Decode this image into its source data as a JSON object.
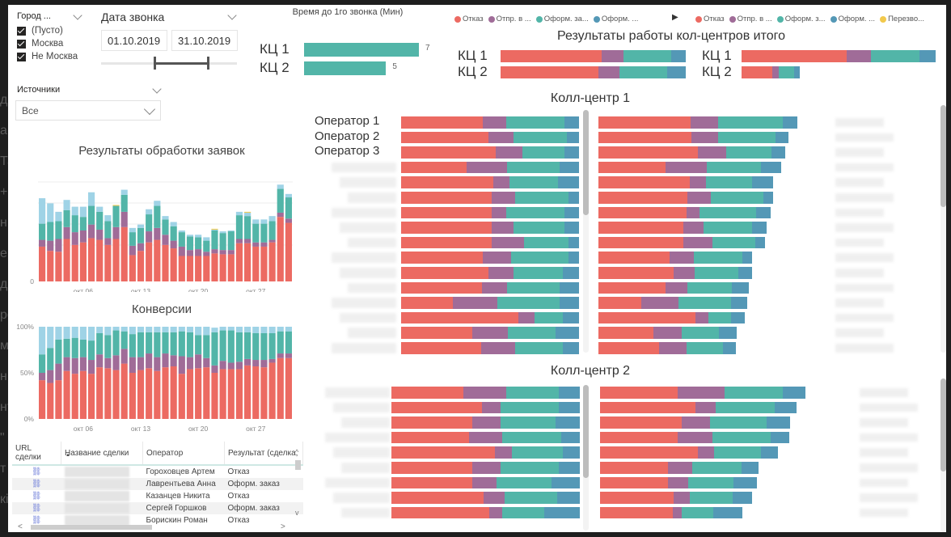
{
  "colors": {
    "otkaz": "#EC6A62",
    "otpr": "#A06C98",
    "oform_z": "#52B5A8",
    "oform": "#5498B6",
    "perezvon": "#F2C94C",
    "light": "#9FD3E6"
  },
  "filters": {
    "city": {
      "label": "Город ...",
      "options": [
        {
          "label": "(Пусто)",
          "checked": true
        },
        {
          "label": "Москва",
          "checked": true
        },
        {
          "label": "Не Москва",
          "checked": true
        }
      ]
    },
    "date": {
      "label": "Дата звонка",
      "from": "01.10.2019",
      "to": "31.10.2019",
      "range_start_fraction": 0.0,
      "range_end_fraction": 1.0
    },
    "sources": {
      "label": "Источники",
      "selected": "Все"
    }
  },
  "time_chart": {
    "title": "Время до 1го звонка (Мин)",
    "rows": [
      {
        "label": "КЦ 1",
        "value": 7
      },
      {
        "label": "КЦ 2",
        "value": 5
      }
    ]
  },
  "legend_a": {
    "items": [
      "Отказ",
      "Отпр. в ...",
      "Оформ. за...",
      "Оформ. ..."
    ],
    "next_arrow": "▶"
  },
  "legend_b": {
    "items": [
      "Отказ",
      "Отпр. в ...",
      "Оформ. з...",
      "Оформ. ...",
      "Перезво..."
    ]
  },
  "totals": {
    "title": "Результаты работы кол-центров итого",
    "left": [
      {
        "label": "КЦ 1",
        "values": [
          55,
          12,
          26,
          8
        ]
      },
      {
        "label": "КЦ 2",
        "values": [
          53,
          11,
          26,
          10
        ]
      }
    ],
    "right": [
      {
        "label": "КЦ 1",
        "values": [
          130,
          30,
          60,
          20
        ]
      },
      {
        "label": "КЦ 2",
        "values": [
          38,
          8,
          19,
          7
        ]
      }
    ]
  },
  "chart_data": [
    {
      "type": "bar",
      "title": "Результаты обработки заявок",
      "stacked": true,
      "categories": [
        "окт 01",
        "окт 02",
        "окт 03",
        "окт 04",
        "окт 05",
        "окт 06",
        "окт 07",
        "окт 08",
        "окт 09",
        "окт 10",
        "окт 11",
        "окт 12",
        "окт 13",
        "окт 14",
        "окт 15",
        "окт 16",
        "окт 17",
        "окт 18",
        "окт 19",
        "окт 20",
        "окт 21",
        "окт 22",
        "окт 23",
        "окт 24",
        "окт 25",
        "окт 26",
        "окт 27",
        "окт 28",
        "окт 29",
        "окт 30",
        "окт 31"
      ],
      "x_ticks": [
        "окт 06",
        "окт 13",
        "окт 20",
        "окт 27"
      ],
      "y_ticks": [
        "0"
      ],
      "series": [
        {
          "name": "Отказ",
          "color": "#EC6A62",
          "values": [
            41,
            36,
            35,
            50,
            43,
            46,
            51,
            49,
            43,
            50,
            64,
            31,
            36,
            46,
            49,
            43,
            39,
            30,
            30,
            30,
            30,
            33,
            32,
            32,
            45,
            45,
            41,
            41,
            46,
            76,
            69
          ]
        },
        {
          "name": "Отпр. в ...",
          "color": "#A06C98",
          "values": [
            8,
            12,
            15,
            14,
            15,
            14,
            16,
            12,
            8,
            14,
            18,
            11,
            9,
            13,
            14,
            12,
            9,
            11,
            7,
            8,
            5,
            5,
            5,
            5,
            5,
            5,
            5,
            5,
            3,
            5,
            5
          ]
        },
        {
          "name": "Оформ. заказ",
          "color": "#52B5A8",
          "values": [
            19,
            22,
            21,
            20,
            20,
            16,
            22,
            21,
            20,
            25,
            20,
            16,
            18,
            20,
            26,
            18,
            17,
            17,
            16,
            14,
            13,
            22,
            20,
            22,
            28,
            27,
            22,
            22,
            22,
            28,
            25
          ]
        },
        {
          "name": "Оформ. ...",
          "color": "#9FD3E6",
          "values": [
            30,
            22,
            11,
            12,
            10,
            12,
            16,
            6,
            7,
            0,
            6,
            5,
            4,
            6,
            6,
            4,
            5,
            2,
            2,
            3,
            4,
            1,
            2,
            1,
            4,
            4,
            5,
            5,
            6,
            5,
            4
          ]
        },
        {
          "name": "Перезво...",
          "color": "#F2C94C",
          "values": [
            0,
            0,
            0,
            0,
            0,
            0,
            0,
            0,
            0,
            1,
            0,
            0,
            0,
            0,
            0,
            0,
            0,
            0,
            0,
            0,
            0,
            1,
            0,
            0,
            0,
            1,
            0,
            0,
            0,
            0,
            0
          ]
        }
      ]
    },
    {
      "type": "bar",
      "title": "Конверсии",
      "stacked": true,
      "percent": true,
      "categories": [
        "окт 01",
        "окт 02",
        "окт 03",
        "окт 04",
        "окт 05",
        "окт 06",
        "окт 07",
        "окт 08",
        "окт 09",
        "окт 10",
        "окт 11",
        "окт 12",
        "окт 13",
        "окт 14",
        "окт 15",
        "окт 16",
        "окт 17",
        "окт 18",
        "окт 19",
        "окт 20",
        "окт 21",
        "окт 22",
        "окт 23",
        "окт 24",
        "окт 25",
        "окт 26",
        "окт 27",
        "окт 28",
        "окт 29",
        "окт 30",
        "окт 31"
      ],
      "x_ticks": [
        "окт 06",
        "окт 13",
        "окт 20",
        "окт 27"
      ],
      "y_ticks": [
        "0%",
        "50%",
        "100%"
      ],
      "ylim": [
        0,
        100
      ],
      "series": [
        {
          "name": "Отказ",
          "color": "#EC6A62",
          "values": [
            42,
            39,
            42,
            52,
            49,
            52,
            49,
            56,
            55,
            53,
            60,
            50,
            53,
            55,
            52,
            56,
            57,
            49,
            54,
            55,
            56,
            50,
            54,
            54,
            54,
            58,
            57,
            56,
            61,
            66,
            66
          ]
        },
        {
          "name": "Отпр. в ...",
          "color": "#A06C98",
          "values": [
            8,
            14,
            18,
            15,
            17,
            15,
            15,
            14,
            11,
            16,
            16,
            17,
            14,
            16,
            15,
            15,
            12,
            19,
            13,
            15,
            10,
            8,
            9,
            7,
            8,
            7,
            7,
            8,
            4,
            5,
            5
          ]
        },
        {
          "name": "Оформ. заказ",
          "color": "#52B5A8",
          "values": [
            20,
            24,
            26,
            20,
            22,
            19,
            21,
            23,
            25,
            27,
            19,
            25,
            27,
            23,
            27,
            23,
            25,
            27,
            27,
            21,
            25,
            36,
            33,
            35,
            32,
            29,
            29,
            29,
            28,
            24,
            24
          ]
        },
        {
          "name": "Оформ. ...",
          "color": "#9FD3E6",
          "values": [
            30,
            23,
            14,
            13,
            12,
            14,
            15,
            7,
            9,
            4,
            5,
            8,
            6,
            6,
            6,
            6,
            6,
            5,
            6,
            9,
            9,
            5,
            4,
            4,
            6,
            6,
            7,
            7,
            7,
            5,
            5
          ]
        }
      ]
    },
    {
      "type": "bar",
      "title": "Колл-центр 1",
      "stacked": true,
      "orientation": "horizontal",
      "visible_labels": [
        "Оператор 1",
        "Оператор 2",
        "Оператор 3"
      ],
      "left_panel": [
        [
          46,
          13,
          33,
          8
        ],
        [
          49,
          14,
          30,
          7
        ],
        [
          53,
          15,
          24,
          8
        ],
        [
          37,
          23,
          30,
          11
        ],
        [
          52,
          9,
          27,
          12
        ],
        [
          51,
          13,
          30,
          6
        ],
        [
          51,
          8,
          33,
          8
        ],
        [
          51,
          12,
          29,
          8
        ],
        [
          51,
          18,
          25,
          6
        ],
        [
          46,
          16,
          32,
          6
        ],
        [
          49,
          14,
          28,
          9
        ],
        [
          45,
          14,
          29,
          11
        ],
        [
          29,
          25,
          35,
          11
        ],
        [
          66,
          9,
          16,
          9
        ],
        [
          40,
          20,
          27,
          13
        ],
        [
          45,
          19,
          27,
          9
        ]
      ],
      "right_panel": [
        [
          91,
          27,
          64,
          15
        ],
        [
          92,
          26,
          57,
          13
        ],
        [
          98,
          28,
          45,
          14
        ],
        [
          66,
          41,
          54,
          20
        ],
        [
          90,
          16,
          46,
          21
        ],
        [
          88,
          23,
          52,
          10
        ],
        [
          87,
          13,
          56,
          14
        ],
        [
          84,
          20,
          48,
          14
        ],
        [
          84,
          29,
          42,
          10
        ],
        [
          70,
          24,
          48,
          10
        ],
        [
          74,
          21,
          43,
          14
        ],
        [
          66,
          22,
          44,
          17
        ],
        [
          42,
          37,
          52,
          16
        ],
        [
          96,
          13,
          22,
          14
        ],
        [
          54,
          28,
          37,
          18
        ],
        [
          60,
          27,
          36,
          13
        ]
      ]
    },
    {
      "type": "bar",
      "title": "Колл-центр 2",
      "stacked": true,
      "orientation": "horizontal",
      "left_panel": [
        [
          38,
          23,
          28,
          11
        ],
        [
          48,
          10,
          31,
          11
        ],
        [
          43,
          15,
          29,
          13
        ],
        [
          41,
          18,
          31,
          10
        ],
        [
          55,
          9,
          27,
          9
        ],
        [
          43,
          15,
          31,
          11
        ],
        [
          43,
          13,
          29,
          15
        ],
        [
          49,
          11,
          28,
          12
        ],
        [
          52,
          7,
          22,
          19
        ]
      ],
      "right_panel": [
        [
          77,
          46,
          58,
          22
        ],
        [
          94,
          20,
          59,
          21
        ],
        [
          81,
          28,
          56,
          23
        ],
        [
          77,
          34,
          58,
          18
        ],
        [
          97,
          16,
          46,
          17
        ],
        [
          67,
          24,
          49,
          17
        ],
        [
          67,
          20,
          45,
          23
        ],
        [
          73,
          16,
          42,
          19
        ],
        [
          72,
          9,
          31,
          29
        ]
      ]
    }
  ],
  "table": {
    "columns": [
      "URL сделки",
      "Название сделки",
      "Оператор",
      "Результат (сделка,"
    ],
    "rows": [
      {
        "operator": "Гороховцев Артем",
        "result": "Отказ"
      },
      {
        "operator": "Лаврентьева Анна",
        "result": "Оформ. заказ"
      },
      {
        "operator": "Казанцев Никита",
        "result": "Отказ"
      },
      {
        "operator": "Сергей Горшков",
        "result": "Оформ. заказ"
      },
      {
        "operator": "Борискин Роман",
        "result": "Отказ"
      }
    ],
    "link_icon": "⛓"
  },
  "background_text": [
    "д",
    "а",
    "Та",
    "+'",
    "нь",
    "ер",
    "д",
    "ро",
    "м",
    "н",
    "нт",
    "\"",
    "т",
    "кі"
  ]
}
